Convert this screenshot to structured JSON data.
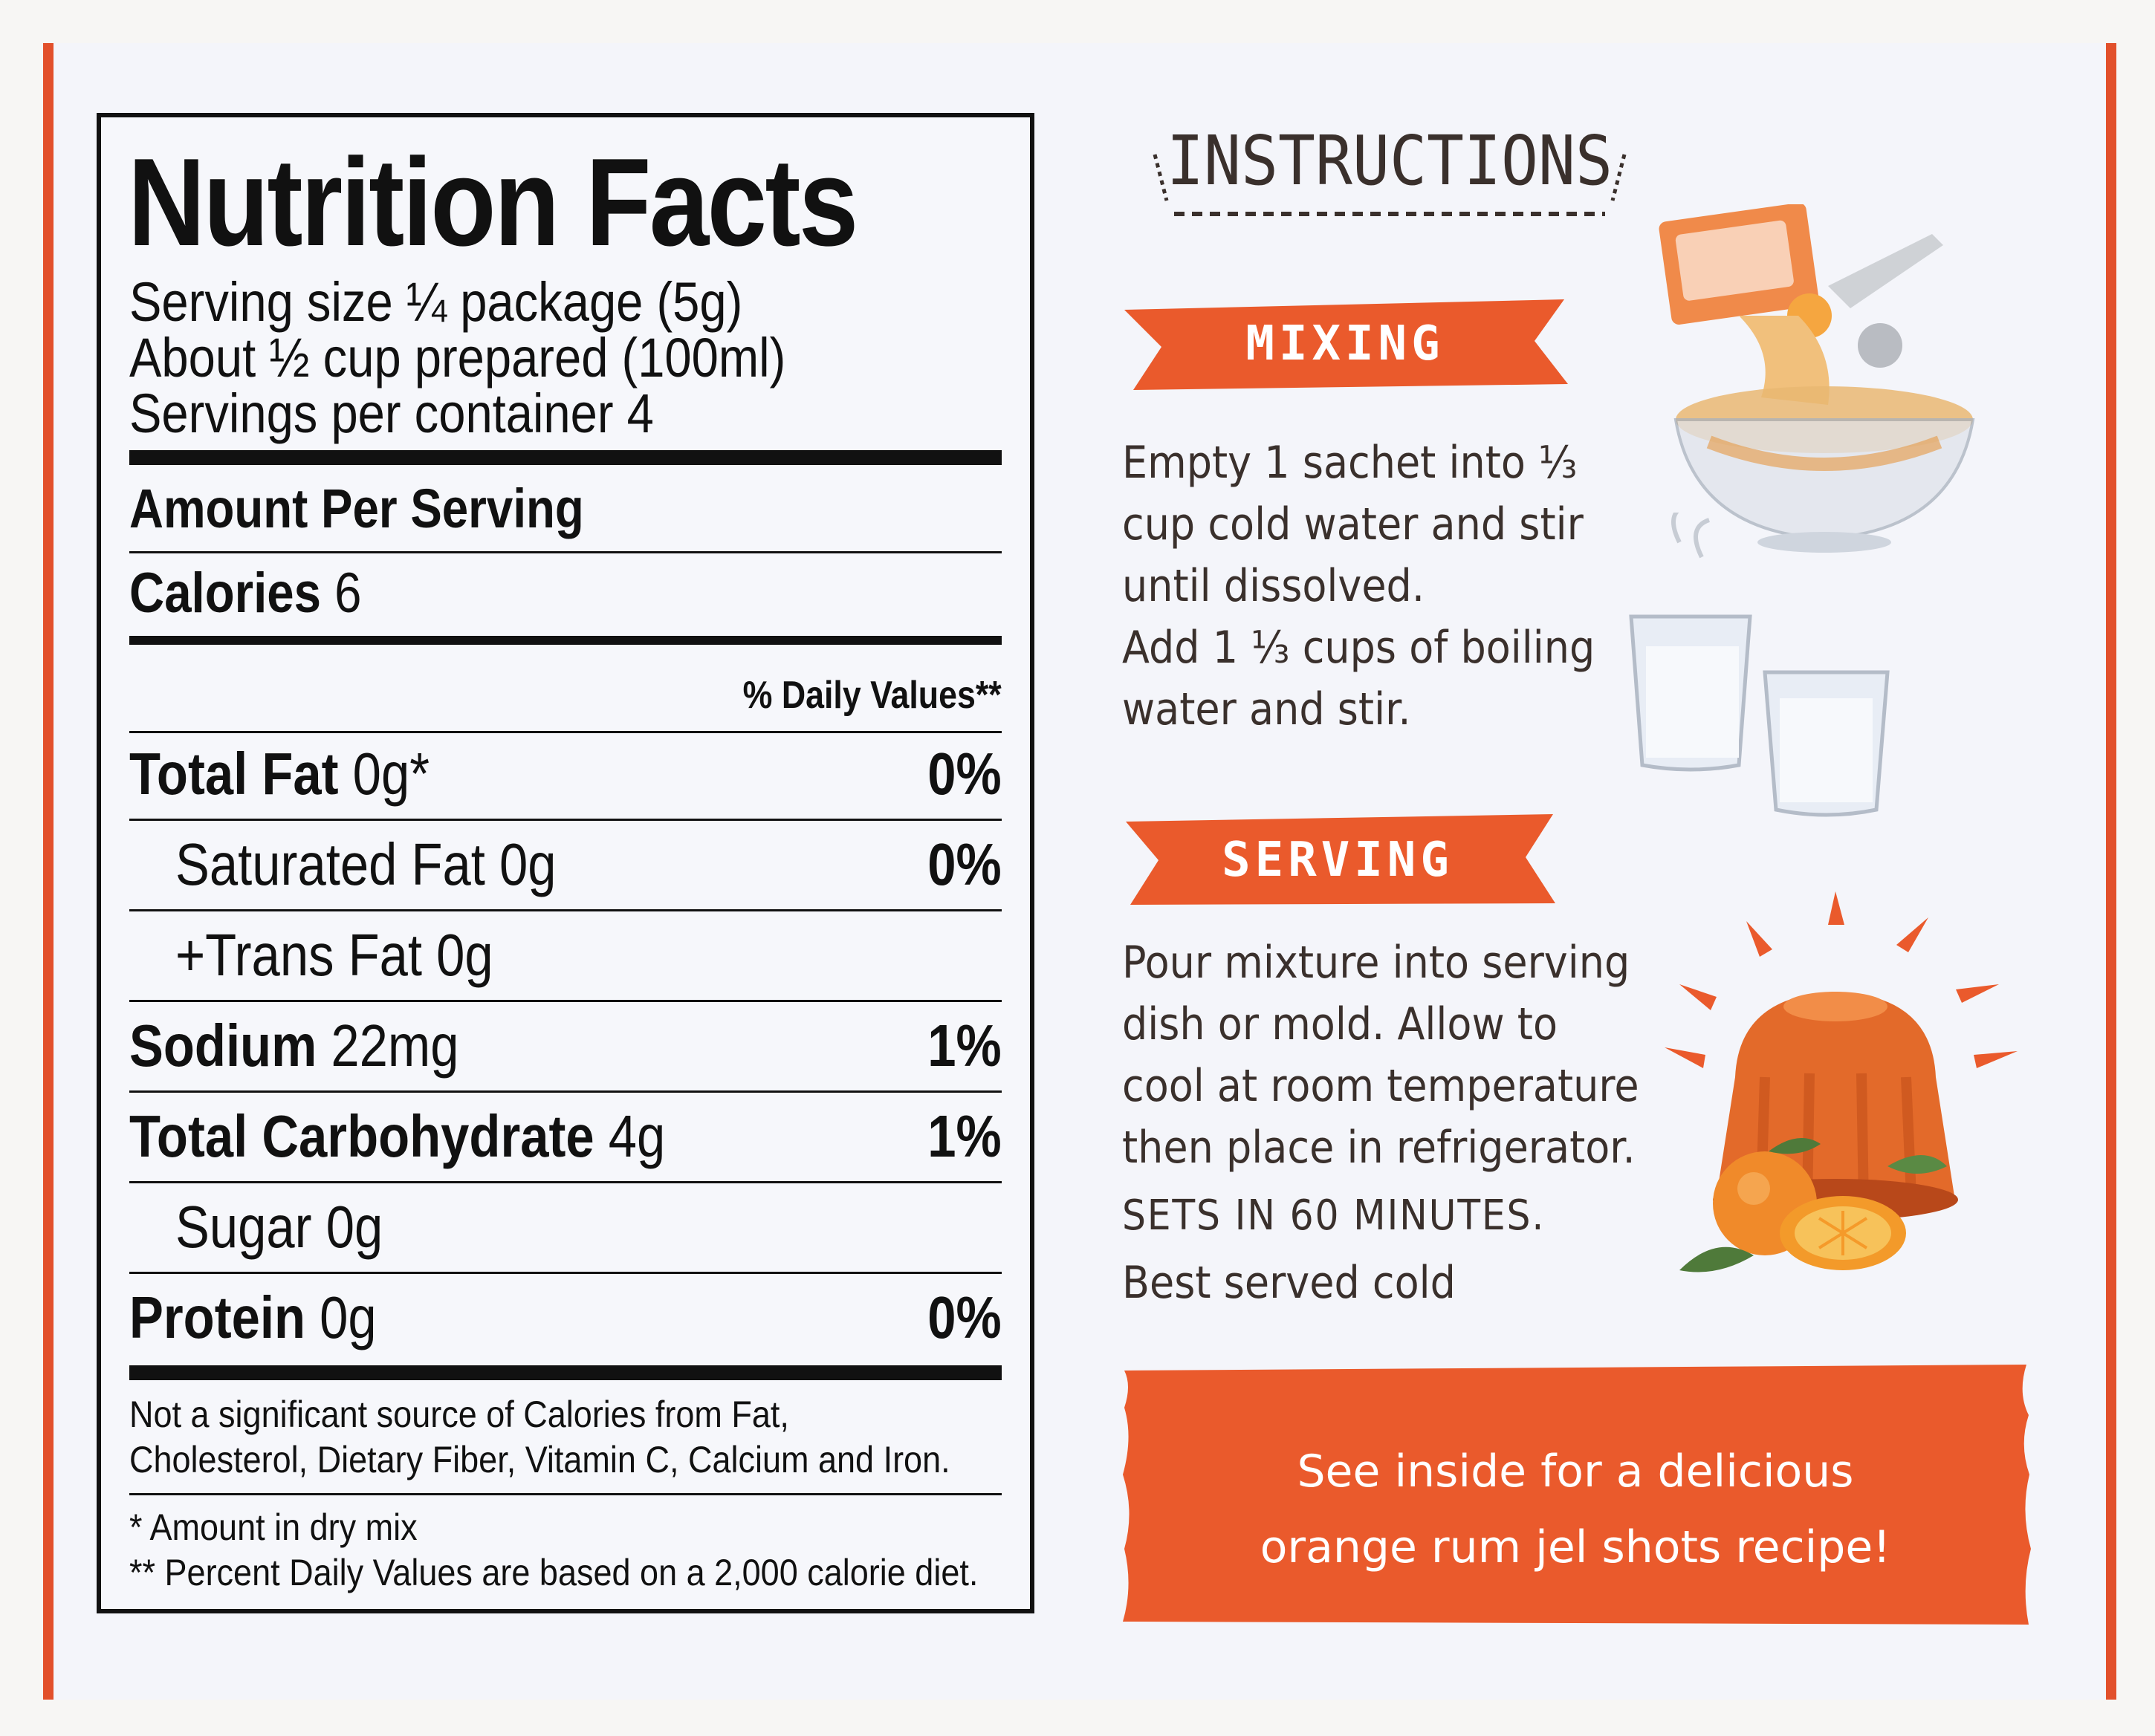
{
  "nutrition": {
    "title": "Nutrition Facts",
    "serving_size": "Serving size ¼ package (5g)",
    "prepared": "About ½ cup prepared (100ml)",
    "servings_per_container": "Servings per container 4",
    "amount_per_serving": "Amount Per Serving",
    "calories_label": "Calories",
    "calories_value": "6",
    "daily_values_header": "% Daily Values**",
    "rows": [
      {
        "label": "Total Fat",
        "amount": "0g*",
        "pct": "0%"
      },
      {
        "label": "Saturated Fat",
        "amount": "0g",
        "pct": "0%"
      },
      {
        "label": "+Trans Fat",
        "amount": "0g",
        "pct": ""
      },
      {
        "label": "Sodium",
        "amount": "22mg",
        "pct": "1%"
      },
      {
        "label": "Total Carbohydrate",
        "amount": "4g",
        "pct": "1%"
      },
      {
        "label": "Sugar",
        "amount": "0g",
        "pct": ""
      },
      {
        "label": "Protein",
        "amount": "0g",
        "pct": "0%"
      }
    ],
    "footnote_1_line1": "Not a significant source of Calories from Fat,",
    "footnote_1_line2": "Cholesterol, Dietary Fiber, Vitamin C, Calcium and Iron.",
    "footnote_2": "* Amount in dry mix",
    "footnote_3": "** Percent Daily Values are based on a 2,000 calorie diet."
  },
  "instructions": {
    "title": "INSTRUCTIONS",
    "mixing_label": "MIXING",
    "mixing_lines": [
      "Empty 1 sachet into ⅓",
      "cup cold water and stir",
      "until dissolved.",
      "Add 1 ⅓ cups of boiling",
      "water and stir."
    ],
    "serving_label": "SERVING",
    "serving_lines": [
      "Pour mixture into serving",
      "dish or mold. Allow to",
      "cool at room temperature",
      "then place in refrigerator."
    ],
    "sets_in": "SETS IN 60 MINUTES.",
    "best_served": "Best served cold",
    "banner_line1": "See inside for a delicious",
    "banner_line2": "orange rum jel shots recipe!"
  },
  "colors": {
    "accent_orange": "#ea5a2c",
    "text_dark": "#111111"
  }
}
